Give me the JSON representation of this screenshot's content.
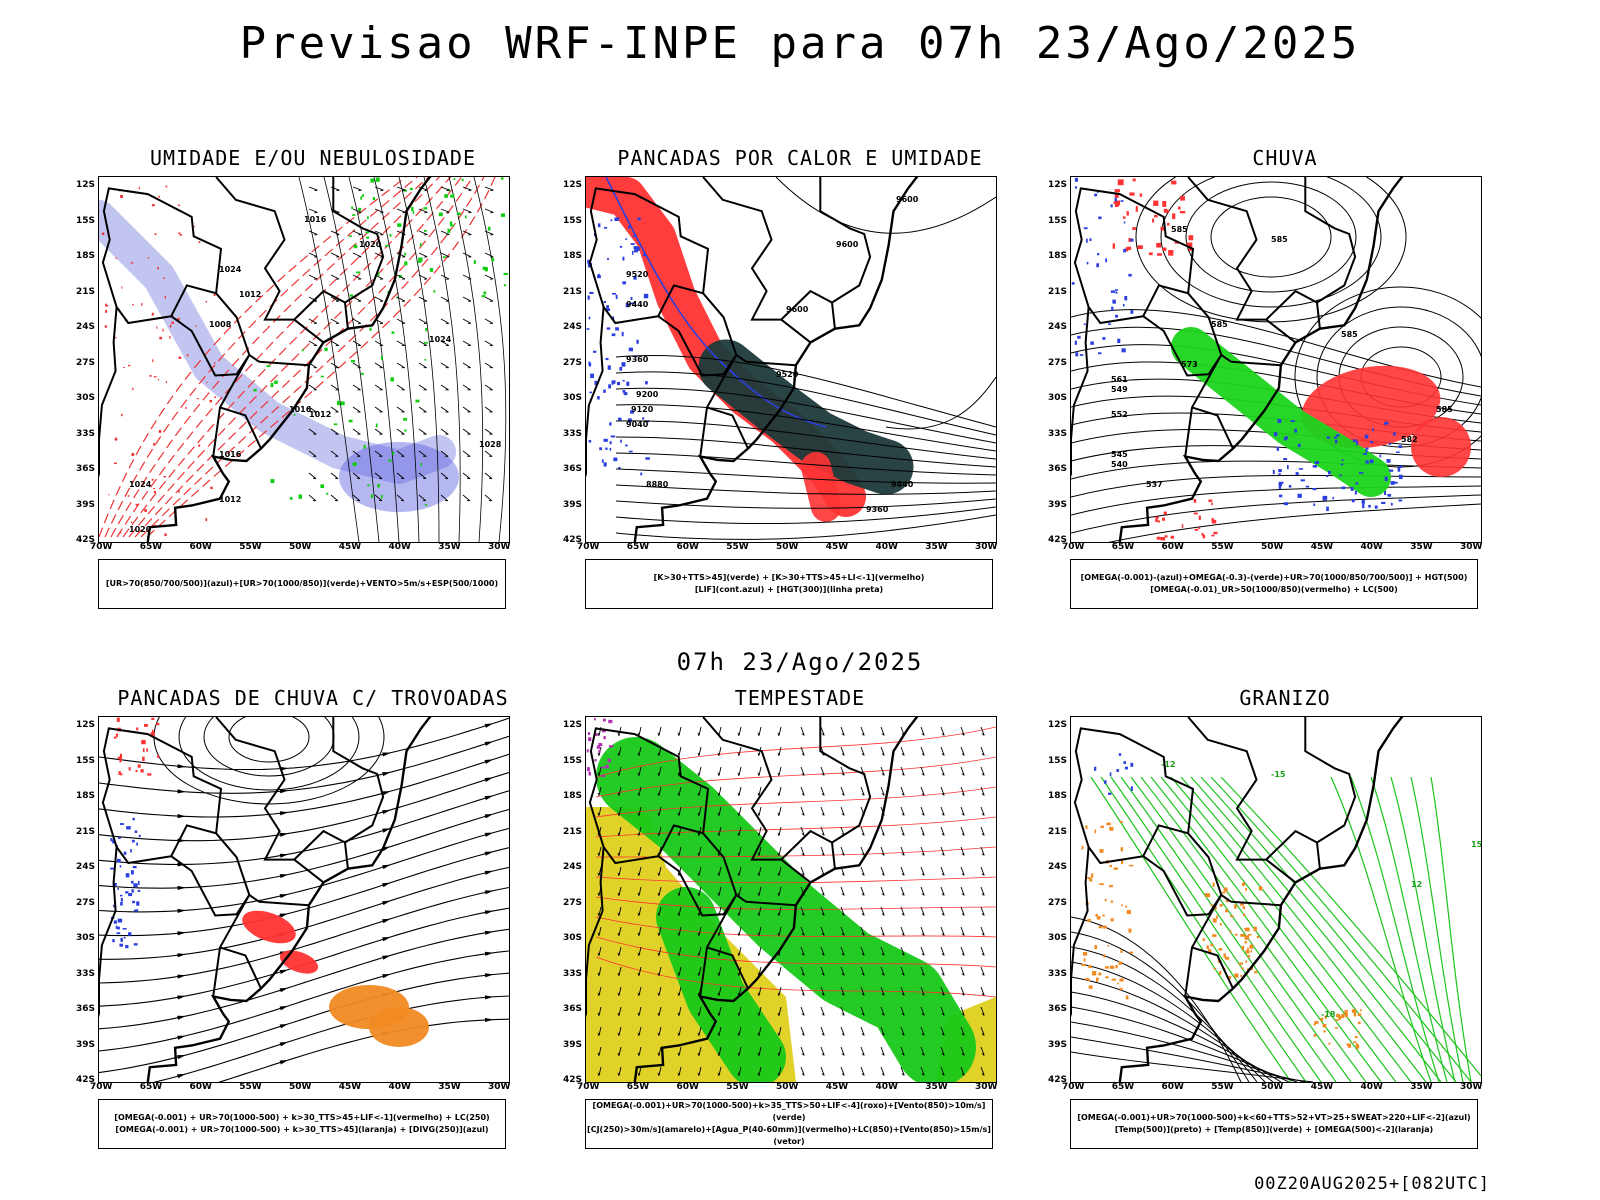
{
  "header": {
    "title": "Previsao WRF-INPE  para 07h 23/Ago/2025"
  },
  "mid_title": "07h 23/Ago/2025",
  "footer": "00Z20AUG2025+[082UTC]",
  "lat_labels": [
    "12S",
    "15S",
    "18S",
    "21S",
    "24S",
    "27S",
    "30S",
    "33S",
    "36S",
    "39S",
    "42S"
  ],
  "lon_labels": [
    "70W",
    "65W",
    "60W",
    "55W",
    "50W",
    "45W",
    "40W",
    "35W",
    "30W"
  ],
  "panels": [
    {
      "title": "UMIDADE E/OU NEBULOSIDADE",
      "legend": [
        "[UR>70(850/700/500)](azul)+[UR>70(1000/850)](verde)+VENTO>5m/s+ESP(500/1000)"
      ]
    },
    {
      "title": "PANCADAS POR CALOR E UMIDADE",
      "legend": [
        "[K>30+TTS>45](verde) + [K>30+TTS>45+LI<-1](vermelho)",
        "[LIF](cont.azul) + [HGT(300)](linha preta)"
      ]
    },
    {
      "title": "CHUVA",
      "legend": [
        "[OMEGA(-0.001)-(azul)+OMEGA(-0.3)-(verde)+UR>70(1000/850/700/500)] + HGT(500)",
        "[OMEGA(-0.01)_UR>50(1000/850)(vermelho) + LC(500)"
      ]
    },
    {
      "title": "PANCADAS DE CHUVA C/ TROVOADAS",
      "legend": [
        "[OMEGA(-0.001) + UR>70(1000-500) + k>30_TTS>45+LIF<-1](vermelho) + LC(250)",
        "[OMEGA(-0.001) + UR>70(1000-500) + k>30_TTS>45](laranja) + [DIVG(250)](azul)"
      ]
    },
    {
      "title": "TEMPESTADE",
      "legend": [
        "[OMEGA(-0.001)+UR>70(1000-500)+k>35_TTS>50+LIF<-4](roxo)+[Vento(850)>10m/s](verde)",
        "[CJ(250)>30m/s](amarelo)+[Agua_P(40-60mm)](vermelho)+LC(850)+[Vento(850)>15m/s](vetor)"
      ]
    },
    {
      "title": "GRANIZO",
      "legend": [
        "[OMEGA(-0.001)+UR>70(1000-500)+k<60+TTS>52+VT>25+SWEAT>220+LIF<-2](azul)",
        "[Temp(500)](preto) + [Temp(850)](verde) + [OMEGA(500)<-2](laranja)"
      ]
    }
  ],
  "contour_labels": {
    "p1": [
      "1016",
      "1020",
      "1024",
      "1012",
      "1008",
      "1024",
      "1016",
      "1012",
      "1028",
      "1016",
      "1024",
      "1012",
      "1020"
    ],
    "p2": [
      "9600",
      "9600",
      "9520",
      "9440",
      "9600",
      "9360",
      "9520",
      "9200",
      "9120",
      "9040",
      "9440",
      "8880",
      "9360"
    ],
    "p3": [
      "585",
      "585",
      "585",
      "573",
      "585",
      "561",
      "549",
      "552",
      "545",
      "540",
      "537",
      "582",
      "585"
    ],
    "p6": [
      "-12",
      "-15",
      "-18",
      "12",
      "15"
    ]
  }
}
